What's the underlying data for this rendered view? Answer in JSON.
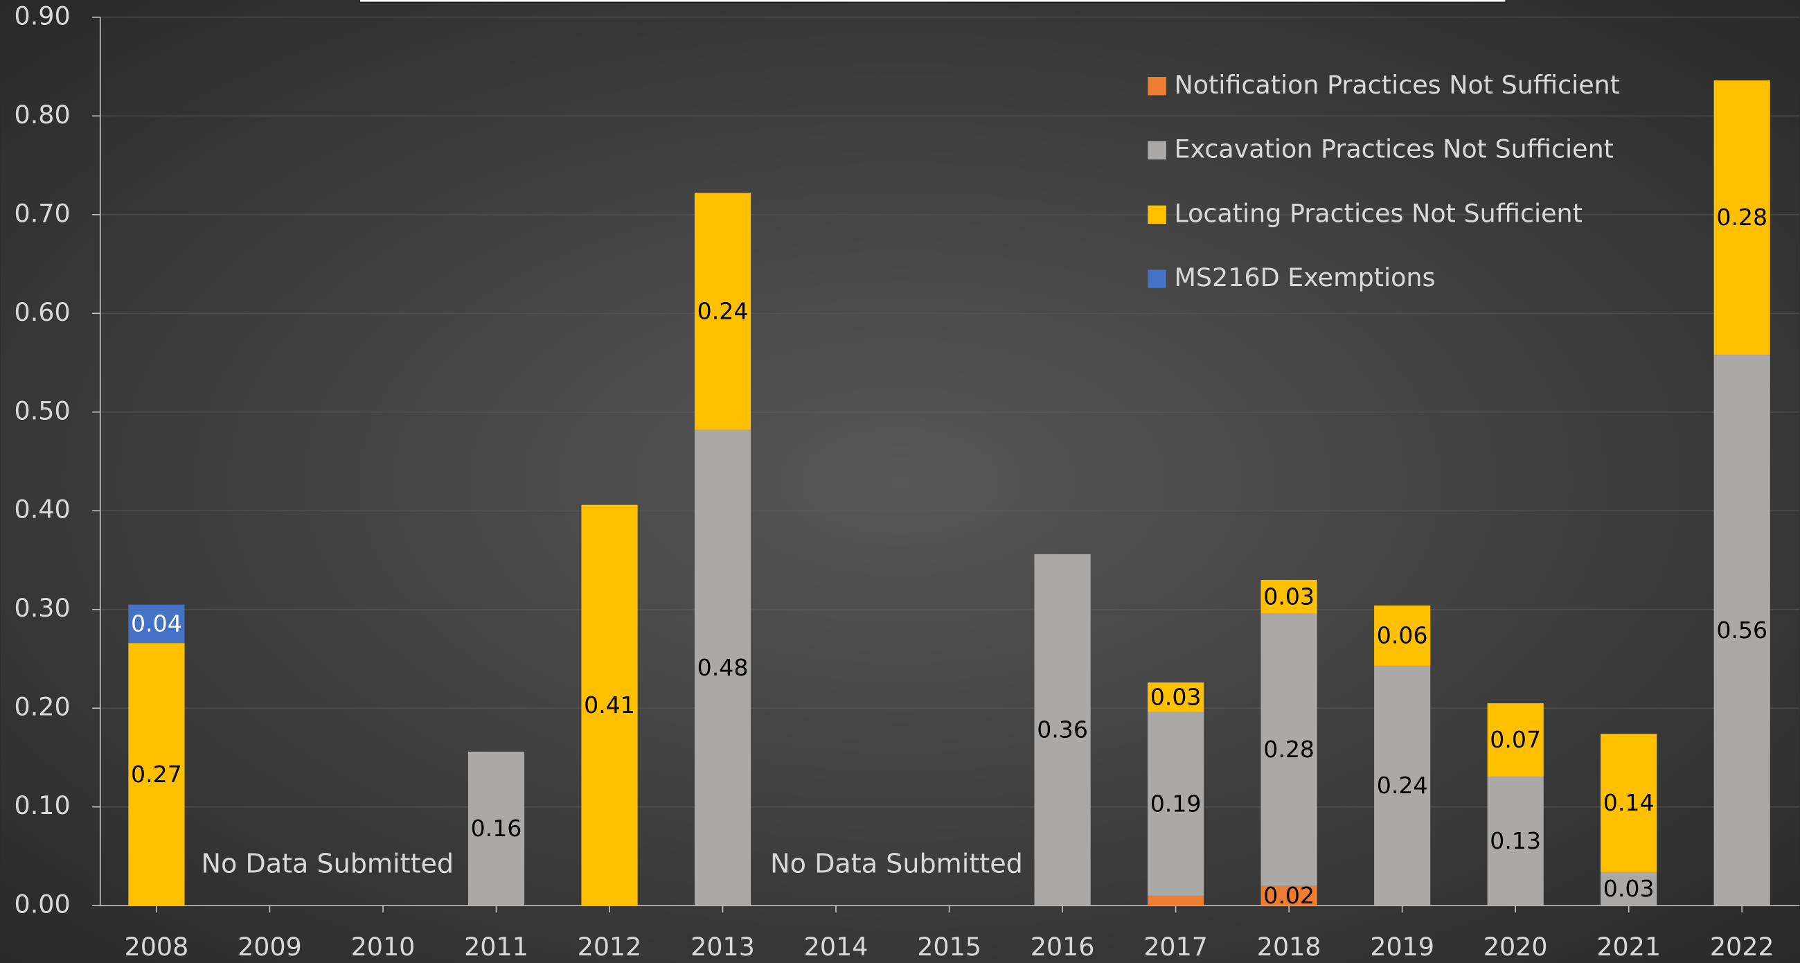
{
  "chart_data": {
    "type": "stacked_bar",
    "categories": [
      "2008",
      "2009",
      "2010",
      "2011",
      "2012",
      "2013",
      "2014",
      "2015",
      "2016",
      "2017",
      "2018",
      "2019",
      "2020",
      "2021",
      "2022"
    ],
    "series": [
      {
        "name": "Notification Practices Not Sufficient",
        "color": "#ED7D31",
        "values": [
          null,
          null,
          null,
          null,
          null,
          null,
          null,
          null,
          null,
          0.01,
          0.02,
          null,
          null,
          null,
          null
        ],
        "value_labels": [
          null,
          null,
          null,
          null,
          null,
          null,
          null,
          null,
          null,
          null,
          "0.02",
          null,
          null,
          null,
          null
        ]
      },
      {
        "name": "Excavation Practices Not Sufficient",
        "color": "#ABA9A7",
        "values": [
          null,
          null,
          null,
          0.156,
          null,
          0.482,
          null,
          null,
          0.356,
          0.186,
          0.276,
          0.243,
          0.131,
          0.034,
          0.558
        ],
        "value_labels": [
          null,
          null,
          null,
          "0.16",
          null,
          "0.48",
          null,
          null,
          "0.36",
          "0.19",
          "0.28",
          "0.24",
          "0.13",
          "0.03",
          "0.56"
        ]
      },
      {
        "name": "Locating Practices Not Sufficient",
        "color": "#FFC000",
        "values": [
          0.266,
          null,
          null,
          null,
          0.406,
          0.24,
          null,
          null,
          null,
          0.03,
          0.034,
          0.061,
          0.074,
          0.14,
          0.278
        ],
        "value_labels": [
          "0.27",
          null,
          null,
          null,
          "0.41",
          "0.24",
          null,
          null,
          null,
          "0.03",
          "0.03",
          "0.06",
          "0.07",
          "0.14",
          "0.28"
        ]
      },
      {
        "name": "MS216D Exemptions",
        "color": "#4472C4",
        "values": [
          0.039,
          null,
          null,
          null,
          null,
          null,
          null,
          null,
          null,
          null,
          null,
          null,
          null,
          null,
          null
        ],
        "value_labels": [
          "0.04",
          null,
          null,
          null,
          null,
          null,
          null,
          null,
          null,
          null,
          null,
          null,
          null,
          null,
          null
        ]
      }
    ],
    "ylim": [
      0,
      0.9
    ],
    "yticks": [
      {
        "value": 0,
        "label": "0.00"
      },
      {
        "value": 0.1,
        "label": "0.10"
      },
      {
        "value": 0.2,
        "label": "0.20"
      },
      {
        "value": 0.3,
        "label": "0.30"
      },
      {
        "value": 0.4,
        "label": "0.40"
      },
      {
        "value": 0.5,
        "label": "0.50"
      },
      {
        "value": 0.6,
        "label": "0.60"
      },
      {
        "value": 0.7,
        "label": "0.70"
      },
      {
        "value": 0.8,
        "label": "0.80"
      },
      {
        "value": 0.9,
        "label": "0.90"
      }
    ],
    "grid": true,
    "legend": "upper right",
    "annotations": [
      "No Data Submitted",
      "No Data Submitted"
    ]
  }
}
